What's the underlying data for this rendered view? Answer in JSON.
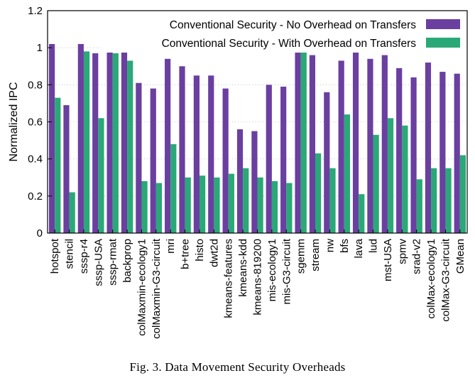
{
  "caption": "Fig. 3.   Data Movement Security Overheads",
  "chart_data": {
    "type": "bar",
    "ylabel": "Normalized IPC",
    "xlabel": "",
    "ylim": [
      0,
      1.2
    ],
    "yticks": [
      0,
      0.2,
      0.4,
      0.6,
      0.8,
      1,
      1.2
    ],
    "ytick_labels": [
      "0",
      "0.2",
      "0.4",
      "0.6",
      "0.8",
      "1",
      "1.2"
    ],
    "grid": "horizontal dotted",
    "legend_position": "top-right",
    "categories": [
      "hotspot",
      "stencil",
      "sssp-r4",
      "sssp-USA",
      "sssp-rmat",
      "backprop",
      "colMaxmin-ecology1",
      "colMaxmin-G3-circuit",
      "mri",
      "b+tree",
      "histo",
      "dwt2d",
      "kmeans-features",
      "kmeans-kdd",
      "kmeans-819200",
      "mis-ecology1",
      "mis-G3-circuit",
      "sgemm",
      "stream",
      "nw",
      "bfs",
      "lava",
      "lud",
      "mst-USA",
      "spmv",
      "srad-v2",
      "colMax-ecology1",
      "colMax-G3-circuit",
      "GMean"
    ],
    "series": [
      {
        "name": "Conventional Security - No Overhead on Transfers",
        "color": "#6a3fa0",
        "values": [
          1.02,
          0.69,
          1.02,
          0.97,
          0.99,
          0.98,
          0.81,
          0.78,
          0.94,
          0.9,
          0.85,
          0.85,
          0.78,
          0.56,
          0.55,
          0.8,
          0.79,
          1.0,
          0.96,
          0.76,
          0.93,
          0.99,
          0.94,
          0.96,
          0.89,
          0.84,
          0.92,
          0.87,
          0.86
        ]
      },
      {
        "name": "Conventional Security - With Overhead on Transfers",
        "color": "#2aa877",
        "values": [
          0.73,
          0.22,
          0.98,
          0.62,
          0.97,
          0.93,
          0.28,
          0.27,
          0.48,
          0.3,
          0.31,
          0.3,
          0.32,
          0.35,
          0.3,
          0.28,
          0.27,
          1.0,
          0.43,
          0.35,
          0.64,
          0.21,
          0.53,
          0.62,
          0.58,
          0.29,
          0.35,
          0.35,
          0.42
        ]
      }
    ]
  }
}
